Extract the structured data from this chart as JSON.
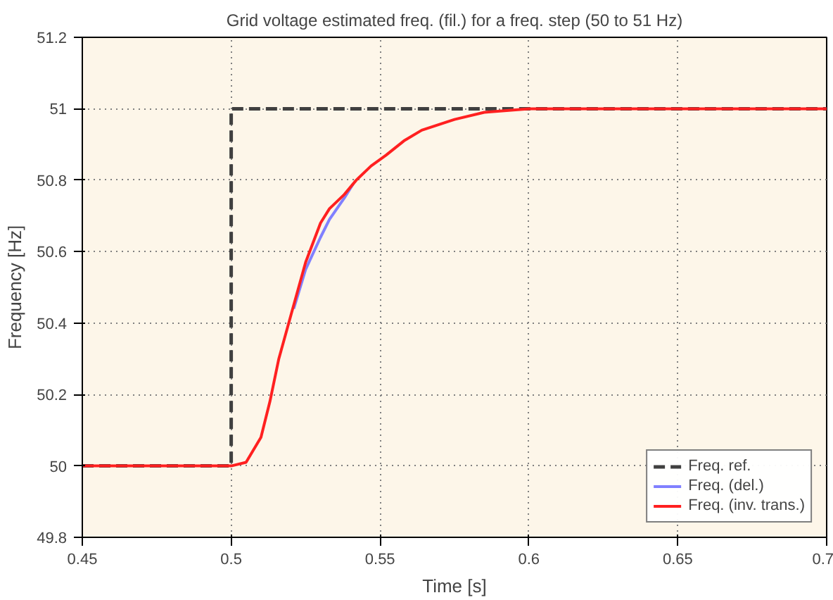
{
  "chart_data": {
    "type": "line",
    "title": "Grid voltage estimated freq. (fil.) for a freq. step (50 to 51 Hz)",
    "xlabel": "Time [s]",
    "ylabel": "Frequency [Hz]",
    "xlim": [
      0.45,
      0.7
    ],
    "ylim": [
      49.8,
      51.2
    ],
    "xticks": [
      0.45,
      0.5,
      0.55,
      0.6,
      0.65,
      0.7
    ],
    "yticks": [
      49.8,
      50,
      50.2,
      50.4,
      50.6,
      50.8,
      51,
      51.2
    ],
    "grid": true,
    "legend": "bottom right",
    "series": [
      {
        "name": "Freq. ref.",
        "color": "#404040",
        "line_style": "dashed",
        "x": [
          0.45,
          0.5,
          0.5,
          0.7
        ],
        "values": [
          50,
          50,
          51,
          51
        ]
      },
      {
        "name": "Freq. (del.)",
        "color": "#8080ff",
        "x": [
          0.521,
          0.525,
          0.53,
          0.533,
          0.538,
          0.541
        ],
        "values": [
          50.44,
          50.55,
          50.64,
          50.69,
          50.75,
          50.79
        ]
      },
      {
        "name": "Freq. (inv. trans.)",
        "color": "#ff2020",
        "x": [
          0.45,
          0.5,
          0.505,
          0.51,
          0.513,
          0.516,
          0.52,
          0.525,
          0.53,
          0.533,
          0.538,
          0.542,
          0.547,
          0.552,
          0.558,
          0.564,
          0.575,
          0.585,
          0.6,
          0.7
        ],
        "values": [
          50,
          50,
          50.01,
          50.08,
          50.18,
          50.3,
          50.42,
          50.57,
          50.68,
          50.72,
          50.76,
          50.8,
          50.84,
          50.87,
          50.91,
          50.94,
          50.97,
          50.99,
          51,
          51
        ]
      }
    ]
  }
}
